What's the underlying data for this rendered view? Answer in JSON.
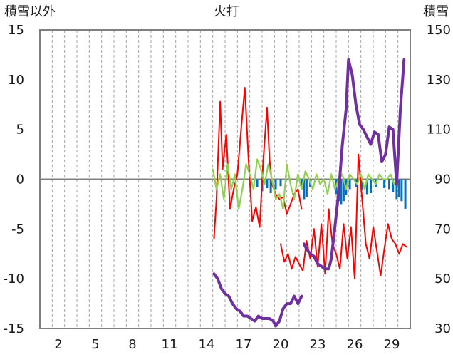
{
  "chart_data": {
    "type": "line",
    "title": "火打",
    "left_axis_label": "積雪以外",
    "right_axis_label": "積雪",
    "ylim_left": [
      -15,
      15
    ],
    "ylim_right": [
      30,
      150
    ],
    "left_ticks": [
      "15",
      "10",
      "5",
      "0",
      "-5",
      "-10",
      "-15"
    ],
    "right_ticks": [
      "150",
      "130",
      "110",
      "90",
      "70",
      "50",
      "30"
    ],
    "xlim": [
      0.5,
      30.5
    ],
    "x_tick_values": [
      2,
      5,
      8,
      11,
      14,
      17,
      20,
      23,
      26,
      29
    ],
    "x_ticks": [
      "2",
      "5",
      "8",
      "11",
      "14",
      "17",
      "20",
      "23",
      "26",
      "29"
    ],
    "grid": "vertical dashed, every day",
    "colors": {
      "red_series": "#ff0000",
      "green_series": "#92d050",
      "blue_series": "#0070c0",
      "purple_series": "#7030a0",
      "axis": "#808080",
      "grid": "#a6a6a6"
    },
    "series": [
      {
        "color": "red",
        "axis": "left",
        "x": [
          14.6,
          14.8,
          15.1,
          15.3,
          15.6,
          15.9,
          16.2,
          16.5,
          16.8,
          17.1,
          17.4,
          17.7,
          18.0,
          18.3,
          18.6,
          18.9,
          19.1,
          19.3,
          19.6,
          19.9,
          20.2,
          20.5,
          20.8,
          21.1,
          21.4,
          21.7
        ],
        "y": [
          -6,
          -2,
          7.8,
          1,
          4.5,
          -3,
          -1,
          0.5,
          5,
          9.2,
          2,
          -4.2,
          -2.8,
          -4.8,
          2,
          7.2,
          2,
          -0.5,
          -1.5,
          -2,
          -1.8,
          -3.5,
          -2.5,
          -1.5,
          -1,
          -3
        ]
      },
      {
        "color": "red",
        "axis": "left",
        "x": [
          20.0,
          20.3,
          20.6,
          20.9,
          21.2,
          21.5,
          21.8,
          22.1,
          22.4,
          22.7,
          23.0,
          23.3,
          23.6,
          23.9,
          24.2,
          24.5,
          24.8,
          25.1,
          25.4,
          25.7,
          26.0,
          26.3,
          26.6,
          26.9,
          27.2,
          27.5,
          27.8,
          28.1,
          28.4,
          28.7,
          29.0,
          29.3,
          29.6,
          29.9,
          30.2
        ],
        "y": [
          -6.5,
          -8.3,
          -7.5,
          -9,
          -7.8,
          -8.5,
          -9.2,
          -6.2,
          -8,
          -5,
          -8.8,
          -4.5,
          -9.5,
          -3,
          -6.5,
          -7.5,
          -9,
          -4.5,
          -8,
          -4.8,
          -10,
          2.5,
          -2,
          -6.5,
          -8,
          -4.8,
          -7.2,
          -9.7,
          -7,
          -4.5,
          -6,
          -6.5,
          -7.5,
          -6.5,
          -6.8
        ]
      },
      {
        "color": "green",
        "axis": "left",
        "x": [
          14.5,
          14.8,
          15.1,
          15.4,
          15.7,
          16.0,
          16.3,
          16.6,
          16.9,
          17.2,
          17.5,
          17.8,
          18.1,
          18.4,
          18.7,
          19.0,
          19.3,
          19.6,
          19.9,
          20.2,
          20.5,
          20.8,
          21.1,
          21.4,
          21.7,
          22.0,
          22.3,
          22.6,
          22.9,
          23.2,
          23.5,
          23.8,
          24.1,
          24.4,
          24.7,
          25.0,
          25.3,
          25.6,
          25.9,
          26.2,
          26.5,
          26.8,
          27.1,
          27.4,
          27.7,
          28.0,
          28.3,
          28.6,
          28.9,
          29.2,
          29.5
        ],
        "y": [
          1,
          -1,
          0.5,
          -2,
          1.5,
          -1,
          0.5,
          -3,
          -1,
          1.5,
          0.5,
          -1,
          2,
          1,
          -0.5,
          1.5,
          0,
          -2,
          -1.5,
          -3,
          1.5,
          -0.5,
          -2,
          0.5,
          -1,
          0.8,
          0,
          -1,
          0.5,
          -0.5,
          0,
          -1.5,
          0.5,
          -1,
          0,
          0.5,
          -1,
          0.5,
          0,
          -0.5,
          0.5,
          -1,
          0.5,
          0,
          -0.5,
          0.5,
          0,
          0,
          0.5,
          -0.5,
          0
        ]
      },
      {
        "color": "blue",
        "axis": "left",
        "x": [
          18.1,
          18.5,
          18.9,
          19.2,
          19.6,
          20.0,
          21.7,
          21.9,
          22.1,
          22.4,
          24.5,
          24.7,
          24.9,
          25.1,
          25.3,
          25.6,
          26.1,
          26.6,
          27.0,
          27.3,
          27.7,
          28.4,
          28.8,
          29.1,
          29.4,
          29.6,
          29.8,
          30.1
        ],
        "y": [
          -0.8,
          -1.2,
          -0.9,
          -1.4,
          -1.0,
          -0.7,
          -1.0,
          -2.0,
          -1.8,
          -0.8,
          -1.5,
          -2.2,
          -2.5,
          -2.2,
          -1.6,
          -1.0,
          -0.8,
          -1.1,
          -1.5,
          -1.4,
          -0.8,
          -0.9,
          -1.0,
          -1.3,
          -2.0,
          -1.8,
          -2.2,
          -3.0
        ]
      },
      {
        "color": "purple",
        "axis": "right",
        "x": [
          14.6,
          14.9,
          15.2,
          15.5,
          15.8,
          16.1,
          16.4,
          16.7,
          17.0,
          17.3,
          17.6,
          17.9,
          18.2,
          18.5,
          18.8,
          19.1,
          19.4,
          19.6,
          19.9,
          20.2,
          20.5,
          20.8,
          21.1,
          21.4,
          21.7
        ],
        "y": [
          52,
          50,
          46,
          44,
          43,
          40,
          38,
          37,
          35,
          35,
          34,
          33,
          35,
          34,
          34,
          34,
          33,
          31,
          33,
          38,
          40,
          40,
          43,
          40,
          43
        ]
      },
      {
        "color": "purple",
        "axis": "right",
        "x": [
          21.9,
          22.1,
          22.4,
          22.7,
          23.0,
          23.3,
          23.6,
          23.9,
          24.1,
          24.4,
          24.7,
          25.0,
          25.3,
          25.5,
          25.8,
          26.1,
          26.4,
          26.7,
          27.0,
          27.3,
          27.6,
          27.9,
          28.2,
          28.5,
          28.8,
          29.1,
          29.4,
          29.7,
          30.0
        ],
        "y": [
          64,
          62,
          60,
          59,
          56,
          55,
          54,
          54,
          58,
          71,
          85,
          104,
          118,
          138,
          132,
          120,
          112,
          110,
          107,
          104,
          109,
          108,
          97,
          100,
          111,
          110,
          88,
          118,
          138
        ]
      }
    ]
  }
}
